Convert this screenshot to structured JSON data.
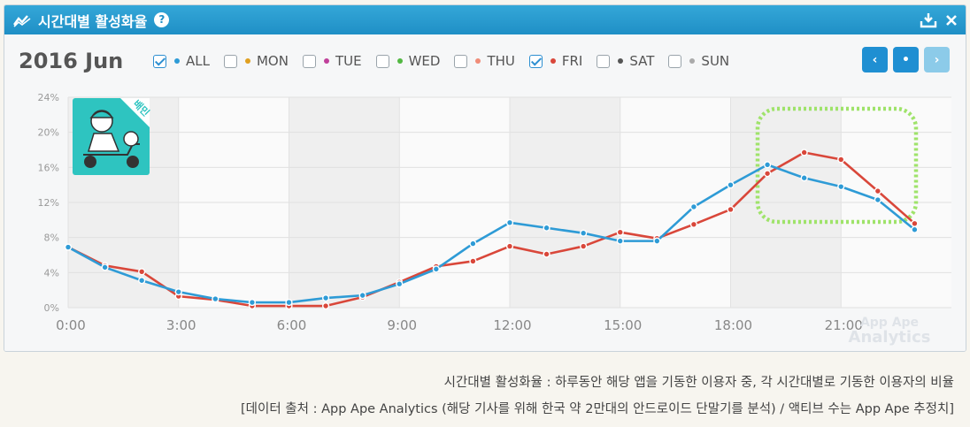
{
  "header": {
    "title": "시간대별 활성화율",
    "help": "?"
  },
  "month_label": "2016 Jun",
  "filters": [
    {
      "label": "ALL",
      "checked": true,
      "color": "#2e9bd6"
    },
    {
      "label": "MON",
      "checked": false,
      "color": "#e0a020"
    },
    {
      "label": "TUE",
      "checked": false,
      "color": "#c0409a"
    },
    {
      "label": "WED",
      "checked": false,
      "color": "#52b842"
    },
    {
      "label": "THU",
      "checked": false,
      "color": "#f08c78"
    },
    {
      "label": "FRI",
      "checked": true,
      "color": "#d9473a"
    },
    {
      "label": "SAT",
      "checked": false,
      "color": "#555555"
    },
    {
      "label": "SUN",
      "checked": false,
      "color": "#aaaaaa"
    }
  ],
  "nav": {
    "prev": "‹",
    "current": "•",
    "next": "›"
  },
  "app_icon_text": "배민",
  "watermark": {
    "line1": "App Ape",
    "line2": "Analytics"
  },
  "chart_data": {
    "type": "line",
    "x": [
      0,
      1,
      2,
      3,
      4,
      5,
      6,
      7,
      8,
      9,
      10,
      11,
      12,
      13,
      14,
      15,
      16,
      17,
      18,
      19,
      20,
      21,
      22,
      23
    ],
    "x_ticks": [
      "0:00",
      "3:00",
      "6:00",
      "9:00",
      "12:00",
      "15:00",
      "18:00",
      "21:00"
    ],
    "x_tick_hours": [
      0,
      3,
      6,
      9,
      12,
      15,
      18,
      21
    ],
    "y_ticks": [
      "0%",
      "4%",
      "8%",
      "12%",
      "16%",
      "20%",
      "24%"
    ],
    "ylim": [
      0,
      24
    ],
    "grid": true,
    "series": [
      {
        "name": "ALL",
        "color": "#2e9bd6",
        "values": [
          6.9,
          4.6,
          3.1,
          1.8,
          1.0,
          0.6,
          0.6,
          1.1,
          1.4,
          2.7,
          4.4,
          7.3,
          9.7,
          9.1,
          8.5,
          7.6,
          7.6,
          11.5,
          14.0,
          16.3,
          14.8,
          13.8,
          12.3,
          8.9
        ]
      },
      {
        "name": "FRI",
        "color": "#d9473a",
        "values": [
          6.9,
          4.8,
          4.1,
          1.3,
          0.9,
          0.2,
          0.2,
          0.2,
          1.2,
          2.9,
          4.7,
          5.3,
          7.0,
          6.1,
          7.0,
          8.6,
          7.9,
          9.5,
          11.2,
          15.3,
          17.7,
          16.9,
          13.3,
          9.6
        ]
      }
    ]
  },
  "caption": {
    "line1": "시간대별 활성화율 : 하루동안 해당 앱을 기동한 이용자 중, 각 시간대별로 기동한 이용자의 비율",
    "line2": "[데이터 출처 : App Ape Analytics (해당 기사를 위해 한국 약 2만대의 안드로이드 단말기를 분석) / 액티브 수는 App Ape 추정치]"
  }
}
